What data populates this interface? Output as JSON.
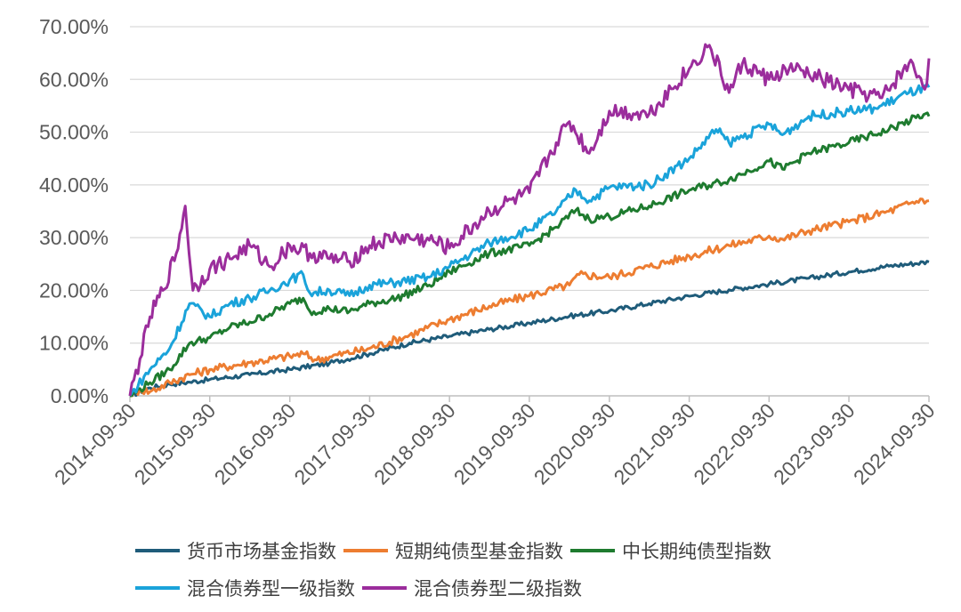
{
  "chart_data": {
    "type": "line",
    "x_ticks": [
      "2014-09-30",
      "2015-09-30",
      "2016-09-30",
      "2017-09-30",
      "2018-09-30",
      "2019-09-30",
      "2020-09-30",
      "2021-09-30",
      "2022-09-30",
      "2023-09-30",
      "2024-09-30"
    ],
    "ylim": [
      0,
      70
    ],
    "y_ticks": [
      "0.00%",
      "10.00%",
      "20.00%",
      "30.00%",
      "40.00%",
      "50.00%",
      "60.00%",
      "70.00%"
    ],
    "grid": true,
    "legend_position": "bottom",
    "series": [
      {
        "name": "货币市场基金指数",
        "color": "#1F5C7A",
        "points": [
          [
            "2014-09-30",
            0
          ],
          [
            "2014-12-31",
            1.5
          ],
          [
            "2015-03-31",
            2.2
          ],
          [
            "2015-06-30",
            2.6
          ],
          [
            "2015-09-30",
            3.1
          ],
          [
            "2016-03-31",
            4.0
          ],
          [
            "2016-09-30",
            5.0
          ],
          [
            "2017-03-31",
            6.2
          ],
          [
            "2017-09-30",
            8.0
          ],
          [
            "2018-03-31",
            10.0
          ],
          [
            "2018-09-30",
            11.3
          ],
          [
            "2019-03-31",
            12.6
          ],
          [
            "2019-09-30",
            13.8
          ],
          [
            "2020-03-31",
            15.1
          ],
          [
            "2020-09-30",
            16.1
          ],
          [
            "2021-03-31",
            17.5
          ],
          [
            "2021-09-30",
            18.9
          ],
          [
            "2022-03-31",
            20.1
          ],
          [
            "2022-09-30",
            21.2
          ],
          [
            "2023-03-31",
            22.3
          ],
          [
            "2023-09-30",
            23.5
          ],
          [
            "2024-03-31",
            24.6
          ],
          [
            "2024-09-30",
            25.4
          ]
        ]
      },
      {
        "name": "短期纯债型基金指数",
        "color": "#ED7D31",
        "points": [
          [
            "2014-09-30",
            0
          ],
          [
            "2014-11-15",
            1.2
          ],
          [
            "2014-12-31",
            0.8
          ],
          [
            "2015-03-31",
            2.5
          ],
          [
            "2015-06-30",
            4.0
          ],
          [
            "2015-09-30",
            5.0
          ],
          [
            "2016-03-31",
            6.3
          ],
          [
            "2016-09-30",
            7.5
          ],
          [
            "2016-11-30",
            8.0
          ],
          [
            "2017-01-31",
            6.8
          ],
          [
            "2017-03-31",
            7.4
          ],
          [
            "2017-09-30",
            9.0
          ],
          [
            "2018-03-31",
            11.5
          ],
          [
            "2018-09-30",
            14.5
          ],
          [
            "2019-03-31",
            17.0
          ],
          [
            "2019-09-30",
            19.0
          ],
          [
            "2020-03-31",
            21.0
          ],
          [
            "2020-05-15",
            23.0
          ],
          [
            "2020-09-30",
            22.5
          ],
          [
            "2021-03-31",
            24.5
          ],
          [
            "2021-09-30",
            26.5
          ],
          [
            "2022-03-31",
            28.5
          ],
          [
            "2022-09-30",
            30.3
          ],
          [
            "2022-11-30",
            29.7
          ],
          [
            "2023-03-31",
            31.3
          ],
          [
            "2023-09-30",
            33.0
          ],
          [
            "2024-03-31",
            35.0
          ],
          [
            "2024-08-31",
            37.3
          ],
          [
            "2024-09-30",
            37.0
          ]
        ]
      },
      {
        "name": "中长期纯债型指数",
        "color": "#1E7B2F",
        "points": [
          [
            "2014-09-30",
            0
          ],
          [
            "2014-12-31",
            2.5
          ],
          [
            "2015-03-31",
            5.0
          ],
          [
            "2015-06-30",
            10.0
          ],
          [
            "2015-09-30",
            11.0
          ],
          [
            "2015-12-31",
            13.0
          ],
          [
            "2016-03-31",
            14.0
          ],
          [
            "2016-06-30",
            15.5
          ],
          [
            "2016-09-30",
            17.5
          ],
          [
            "2016-11-30",
            18.5
          ],
          [
            "2016-12-31",
            16.0
          ],
          [
            "2017-03-31",
            16.5
          ],
          [
            "2017-06-30",
            16.0
          ],
          [
            "2017-09-30",
            17.5
          ],
          [
            "2018-01-31",
            18.5
          ],
          [
            "2018-06-30",
            21.0
          ],
          [
            "2018-09-30",
            23.5
          ],
          [
            "2019-03-31",
            27.0
          ],
          [
            "2019-09-30",
            28.5
          ],
          [
            "2020-01-31",
            32.0
          ],
          [
            "2020-04-30",
            35.2
          ],
          [
            "2020-06-30",
            33.5
          ],
          [
            "2020-09-30",
            34.0
          ],
          [
            "2021-03-31",
            36.0
          ],
          [
            "2021-09-30",
            39.0
          ],
          [
            "2022-03-31",
            41.0
          ],
          [
            "2022-09-30",
            44.5
          ],
          [
            "2022-11-30",
            43.0
          ],
          [
            "2023-03-31",
            46.0
          ],
          [
            "2023-09-30",
            48.0
          ],
          [
            "2024-03-31",
            50.5
          ],
          [
            "2024-09-15",
            53.5
          ],
          [
            "2024-09-30",
            53.0
          ]
        ]
      },
      {
        "name": "混合债券型一级指数",
        "color": "#1AA3DA",
        "points": [
          [
            "2014-09-30",
            0
          ],
          [
            "2014-12-31",
            5.0
          ],
          [
            "2015-03-31",
            9.0
          ],
          [
            "2015-06-30",
            17.5
          ],
          [
            "2015-09-30",
            15.0
          ],
          [
            "2015-12-31",
            17.5
          ],
          [
            "2016-03-31",
            18.5
          ],
          [
            "2016-06-30",
            20.0
          ],
          [
            "2016-09-30",
            22.0
          ],
          [
            "2016-11-30",
            23.0
          ],
          [
            "2016-12-31",
            19.5
          ],
          [
            "2017-03-31",
            20.0
          ],
          [
            "2017-06-30",
            19.0
          ],
          [
            "2017-09-30",
            21.0
          ],
          [
            "2018-01-31",
            21.5
          ],
          [
            "2018-06-30",
            22.5
          ],
          [
            "2018-09-30",
            24.5
          ],
          [
            "2019-03-31",
            29.0
          ],
          [
            "2019-09-30",
            31.5
          ],
          [
            "2020-01-31",
            35.0
          ],
          [
            "2020-04-30",
            39.0
          ],
          [
            "2020-06-30",
            37.0
          ],
          [
            "2020-09-30",
            39.5
          ],
          [
            "2021-03-31",
            40.0
          ],
          [
            "2021-09-30",
            45.0
          ],
          [
            "2022-01-31",
            50.5
          ],
          [
            "2022-03-31",
            48.0
          ],
          [
            "2022-09-30",
            51.5
          ],
          [
            "2022-11-30",
            49.5
          ],
          [
            "2023-03-31",
            53.0
          ],
          [
            "2023-09-30",
            54.0
          ],
          [
            "2024-01-31",
            54.5
          ],
          [
            "2024-06-30",
            57.5
          ],
          [
            "2024-09-30",
            58.5
          ]
        ]
      },
      {
        "name": "混合债券型二级指数",
        "color": "#9B2D9C",
        "points": [
          [
            "2014-09-30",
            0
          ],
          [
            "2014-11-15",
            7.0
          ],
          [
            "2014-12-31",
            15.0
          ],
          [
            "2015-02-28",
            20.0
          ],
          [
            "2015-04-30",
            27.0
          ],
          [
            "2015-06-10",
            36.0
          ],
          [
            "2015-07-15",
            20.0
          ],
          [
            "2015-09-30",
            24.0
          ],
          [
            "2015-12-31",
            26.0
          ],
          [
            "2016-03-31",
            28.5
          ],
          [
            "2016-06-30",
            24.5
          ],
          [
            "2016-09-30",
            28.5
          ],
          [
            "2016-12-31",
            27.0
          ],
          [
            "2017-03-31",
            26.0
          ],
          [
            "2017-06-30",
            25.5
          ],
          [
            "2017-09-30",
            28.5
          ],
          [
            "2018-01-31",
            30.0
          ],
          [
            "2018-06-30",
            29.5
          ],
          [
            "2018-09-30",
            28.0
          ],
          [
            "2019-03-31",
            35.0
          ],
          [
            "2019-09-30",
            38.5
          ],
          [
            "2020-01-31",
            48.0
          ],
          [
            "2020-03-31",
            52.0
          ],
          [
            "2020-06-30",
            46.0
          ],
          [
            "2020-09-30",
            54.0
          ],
          [
            "2021-03-31",
            53.5
          ],
          [
            "2021-09-30",
            62.0
          ],
          [
            "2021-12-31",
            66.5
          ],
          [
            "2022-03-31",
            57.5
          ],
          [
            "2022-05-31",
            63.0
          ],
          [
            "2022-09-30",
            60.0
          ],
          [
            "2022-12-31",
            62.0
          ],
          [
            "2023-03-31",
            61.0
          ],
          [
            "2023-09-30",
            58.0
          ],
          [
            "2024-02-28",
            56.5
          ],
          [
            "2024-06-30",
            63.0
          ],
          [
            "2024-09-20",
            59.0
          ],
          [
            "2024-09-30",
            64.0
          ]
        ]
      }
    ]
  }
}
